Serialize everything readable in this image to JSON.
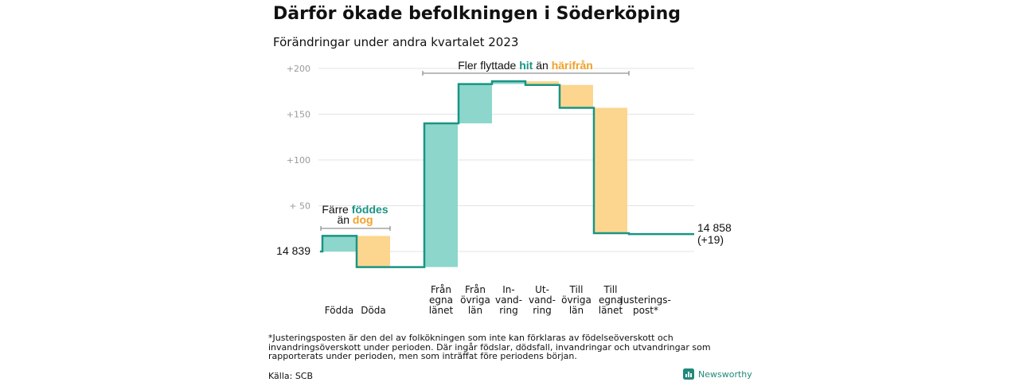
{
  "header": {
    "title": "Därför ökade befolkningen i Söderköping",
    "subtitle": "Förändringar under andra kvartalet 2023"
  },
  "chart_data": {
    "type": "waterfall",
    "start_value": 14839,
    "start_label": "14  839",
    "end_label_lines": [
      "14 858",
      "(+19)"
    ],
    "y_ticks": [
      {
        "value": 50,
        "label": "+  50"
      },
      {
        "value": 100,
        "label": "+100"
      },
      {
        "value": 150,
        "label": "+150"
      },
      {
        "value": 200,
        "label": "+200"
      }
    ],
    "ylim": [
      -22,
      210
    ],
    "steps": [
      {
        "name": "Födda",
        "lines": [
          "Födda"
        ],
        "change": 17,
        "kind": "inflow"
      },
      {
        "name": "Döda",
        "lines": [
          "Döda"
        ],
        "change": -34,
        "kind": "outflow"
      },
      {
        "name": "Från egna länet",
        "lines": [
          "Från",
          "egna",
          "länet"
        ],
        "change": 157,
        "kind": "inflow"
      },
      {
        "name": "Från övriga län",
        "lines": [
          "Från",
          "övriga",
          "län"
        ],
        "change": 43,
        "kind": "inflow"
      },
      {
        "name": "Invandring",
        "lines": [
          "In-",
          "vand-",
          "ring"
        ],
        "change": 3,
        "kind": "inflow"
      },
      {
        "name": "Utvandring",
        "lines": [
          "Ut-",
          "vand-",
          "ring"
        ],
        "change": -4,
        "kind": "outflow"
      },
      {
        "name": "Till övriga län",
        "lines": [
          "Till",
          "övriga",
          "län"
        ],
        "change": -25,
        "kind": "outflow"
      },
      {
        "name": "Till egna länet",
        "lines": [
          "Till",
          "egna",
          "länet"
        ],
        "change": -137,
        "kind": "outflow"
      },
      {
        "name": "Justeringspost*",
        "lines": [
          "Justerings-",
          "post*"
        ],
        "change": -1,
        "kind": "adjustment"
      }
    ],
    "annotations": {
      "births_group": {
        "line1": "Färre",
        "line1_highlight": "föddes",
        "line2": "än",
        "line2_highlight": "dog"
      },
      "migration_group": {
        "text": "Fler flyttade",
        "highlight1": "hit",
        "middle": "än",
        "highlight2": "härifrån"
      }
    },
    "colors": {
      "inflow": "#8dd6cc",
      "outflow": "#fcd68f",
      "line": "#1a9484",
      "grid": "#e3e3e3",
      "teal_text": "#1a9484",
      "orange_text": "#f0a22a"
    }
  },
  "footnote": "*Justeringsposten är den del av folkökningen som inte kan förklaras av födelseöverskott och invandringsöverskott under perioden. Där ingår födslar, dödsfall, invandringar och utvandringar som rapporterats under perioden, men som inträffat före periodens början.",
  "source": "Källa: SCB",
  "brand": {
    "name": "Newsworthy",
    "icon": "newsworthy-bar-chart-icon"
  }
}
